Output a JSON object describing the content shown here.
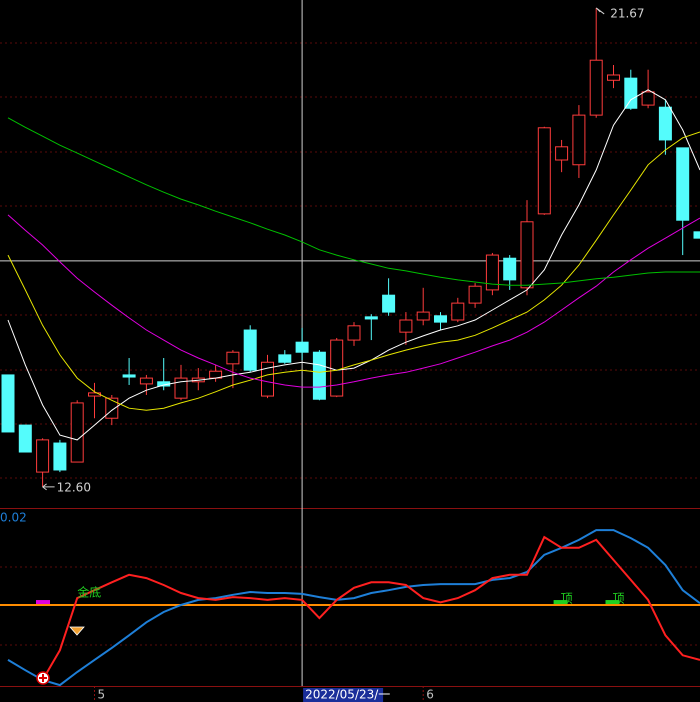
{
  "chart_data": [
    {
      "type": "candlestick",
      "categories": [
        null,
        null,
        null,
        null,
        null,
        "5",
        null,
        null,
        null,
        null,
        null,
        null,
        null,
        null,
        null,
        null,
        null,
        null,
        null,
        null,
        null,
        null,
        null,
        null,
        "6",
        null,
        null,
        null,
        null,
        null,
        null,
        null,
        null,
        null,
        null,
        null,
        null,
        null,
        null,
        null,
        null
      ],
      "open": [
        14.72,
        13.77,
        12.88,
        13.43,
        13.07,
        14.32,
        13.9,
        14.72,
        14.55,
        14.59,
        14.28,
        14.59,
        14.66,
        14.93,
        15.57,
        14.32,
        15.1,
        15.34,
        15.15,
        14.32,
        15.38,
        15.82,
        16.23,
        15.53,
        15.76,
        15.84,
        15.76,
        16.08,
        16.33,
        16.93,
        16.37,
        17.77,
        18.79,
        18.7,
        19.64,
        20.3,
        20.34,
        19.83,
        19.79,
        19.02,
        17.43
      ],
      "high": [
        14.72,
        13.77,
        13.52,
        13.49,
        14.24,
        14.57,
        14.34,
        15.04,
        14.72,
        15.04,
        14.91,
        14.85,
        14.91,
        15.19,
        15.66,
        15.1,
        15.19,
        15.61,
        15.19,
        15.42,
        15.72,
        15.87,
        16.55,
        15.91,
        16.37,
        15.91,
        16.18,
        16.46,
        17.03,
        16.99,
        18.03,
        19.42,
        19.17,
        19.83,
        21.67,
        20.59,
        20.5,
        20.5,
        19.93,
        19.02,
        17.43
      ],
      "low": [
        13.64,
        13.26,
        12.6,
        12.88,
        13.07,
        13.9,
        13.77,
        14.53,
        14.34,
        14.43,
        14.24,
        14.43,
        14.59,
        14.47,
        14.77,
        14.28,
        14.93,
        15.0,
        14.24,
        14.3,
        15.27,
        15.38,
        15.84,
        15.29,
        15.66,
        15.57,
        15.72,
        15.99,
        16.23,
        16.33,
        16.23,
        17.75,
        18.56,
        18.45,
        19.59,
        20.15,
        19.74,
        19.77,
        18.89,
        16.99,
        17.31
      ],
      "close": [
        13.64,
        13.26,
        13.49,
        12.92,
        14.19,
        14.38,
        14.28,
        14.68,
        14.66,
        14.51,
        14.66,
        14.66,
        14.79,
        15.15,
        14.81,
        14.96,
        14.96,
        15.15,
        14.26,
        15.38,
        15.65,
        15.78,
        15.91,
        15.76,
        15.91,
        15.72,
        16.08,
        16.4,
        16.99,
        16.52,
        17.62,
        19.4,
        19.04,
        19.64,
        20.68,
        20.4,
        19.77,
        20.08,
        19.17,
        17.65,
        17.31
      ],
      "up_color": "#ff3c3c",
      "down_color": "#54fcfc",
      "series": [
        {
          "color": "#ffffff",
          "values": [
            15.76,
            14.91,
            14.15,
            13.58,
            13.49,
            13.77,
            14.05,
            14.28,
            14.43,
            14.53,
            14.59,
            14.62,
            14.66,
            14.72,
            14.77,
            14.85,
            14.91,
            14.96,
            14.91,
            14.81,
            14.85,
            15.0,
            15.19,
            15.34,
            15.46,
            15.57,
            15.65,
            15.76,
            15.95,
            16.14,
            16.33,
            16.71,
            17.37,
            17.94,
            18.6,
            19.45,
            19.93,
            20.12,
            19.93,
            19.36,
            18.6
          ]
        },
        {
          "color": "#e6e600",
          "values": [
            16.99,
            16.33,
            15.66,
            15.1,
            14.66,
            14.4,
            14.24,
            14.09,
            14.05,
            14.09,
            14.19,
            14.28,
            14.4,
            14.53,
            14.62,
            14.72,
            14.77,
            14.81,
            14.77,
            14.81,
            14.91,
            15.0,
            15.1,
            15.19,
            15.27,
            15.34,
            15.38,
            15.47,
            15.61,
            15.76,
            15.91,
            16.14,
            16.42,
            16.8,
            17.27,
            17.75,
            18.22,
            18.7,
            18.98,
            19.21,
            19.32
          ]
        },
        {
          "color": "#e000e0",
          "values": [
            17.75,
            17.46,
            17.18,
            16.86,
            16.55,
            16.29,
            16.04,
            15.8,
            15.57,
            15.38,
            15.19,
            15.04,
            14.91,
            14.77,
            14.66,
            14.59,
            14.53,
            14.49,
            14.49,
            14.53,
            14.59,
            14.66,
            14.72,
            14.77,
            14.85,
            14.93,
            15.04,
            15.15,
            15.27,
            15.38,
            15.53,
            15.72,
            15.95,
            16.18,
            16.4,
            16.67,
            16.9,
            17.12,
            17.31,
            17.5,
            17.69
          ]
        },
        {
          "color": "#00c000",
          "values": [
            19.59,
            19.41,
            19.24,
            19.07,
            18.92,
            18.77,
            18.62,
            18.47,
            18.32,
            18.18,
            18.05,
            17.94,
            17.82,
            17.71,
            17.6,
            17.48,
            17.37,
            17.24,
            17.09,
            16.99,
            16.9,
            16.82,
            16.74,
            16.69,
            16.63,
            16.57,
            16.52,
            16.48,
            16.44,
            16.42,
            16.42,
            16.44,
            16.46,
            16.5,
            16.54,
            16.57,
            16.61,
            16.65,
            16.67,
            16.67,
            16.67
          ]
        }
      ],
      "ylim": [
        12.2,
        21.82
      ],
      "high_label": {
        "index": 34,
        "value": 21.67
      },
      "low_label": {
        "index": 2,
        "value": 12.6,
        "label": "12.60"
      },
      "crosshair": {
        "index": 17,
        "price": 16.88,
        "label": "2022/05/23/一"
      }
    },
    {
      "type": "line",
      "series": [
        {
          "color": "#1e7fd8",
          "values": [
            -0.0118,
            -0.014,
            -0.0161,
            -0.0172,
            -0.0144,
            -0.0118,
            -0.0092,
            -0.0065,
            -0.0037,
            -0.0015,
            0,
            0.0011,
            0.0015,
            0.0022,
            0.0028,
            0.0026,
            0.0026,
            0.0024,
            0.0017,
            0.0011,
            0.0015,
            0.0026,
            0.0032,
            0.0039,
            0.0043,
            0.0045,
            0.0045,
            0.0045,
            0.0054,
            0.0058,
            0.0071,
            0.0108,
            0.0123,
            0.014,
            0.0161,
            0.0161,
            0.0144,
            0.0123,
            0.0086,
            0.0032,
            0.0004
          ]
        },
        {
          "color": "#ff2020",
          "values": [
            null,
            null,
            -0.0161,
            -0.0097,
            0.0015,
            0.0032,
            0.0049,
            0.0065,
            0.0058,
            0.0043,
            0.0026,
            0.0015,
            0.0011,
            0.0017,
            0.0015,
            0.0011,
            0.0015,
            0.0011,
            -0.0028,
            0.0011,
            0.0037,
            0.0049,
            0.0049,
            0.0043,
            0.0015,
            0.0006,
            0.0015,
            0.0032,
            0.0058,
            0.0065,
            0.0065,
            0.0146,
            0.0123,
            0.0123,
            0.014,
            0.0097,
            0.0054,
            0.0011,
            -0.0065,
            -0.0108,
            -0.0118
          ]
        }
      ],
      "ylim": [
        -0.0174,
        0.02
      ],
      "yticks": [
        0.02
      ],
      "reference_line": {
        "value": 0,
        "color": "#ff8c00"
      },
      "annotations": [
        {
          "text": "金底",
          "index": 4
        },
        {
          "text": "顶",
          "index": 32
        },
        {
          "text": "顶",
          "index": 35
        }
      ]
    }
  ]
}
